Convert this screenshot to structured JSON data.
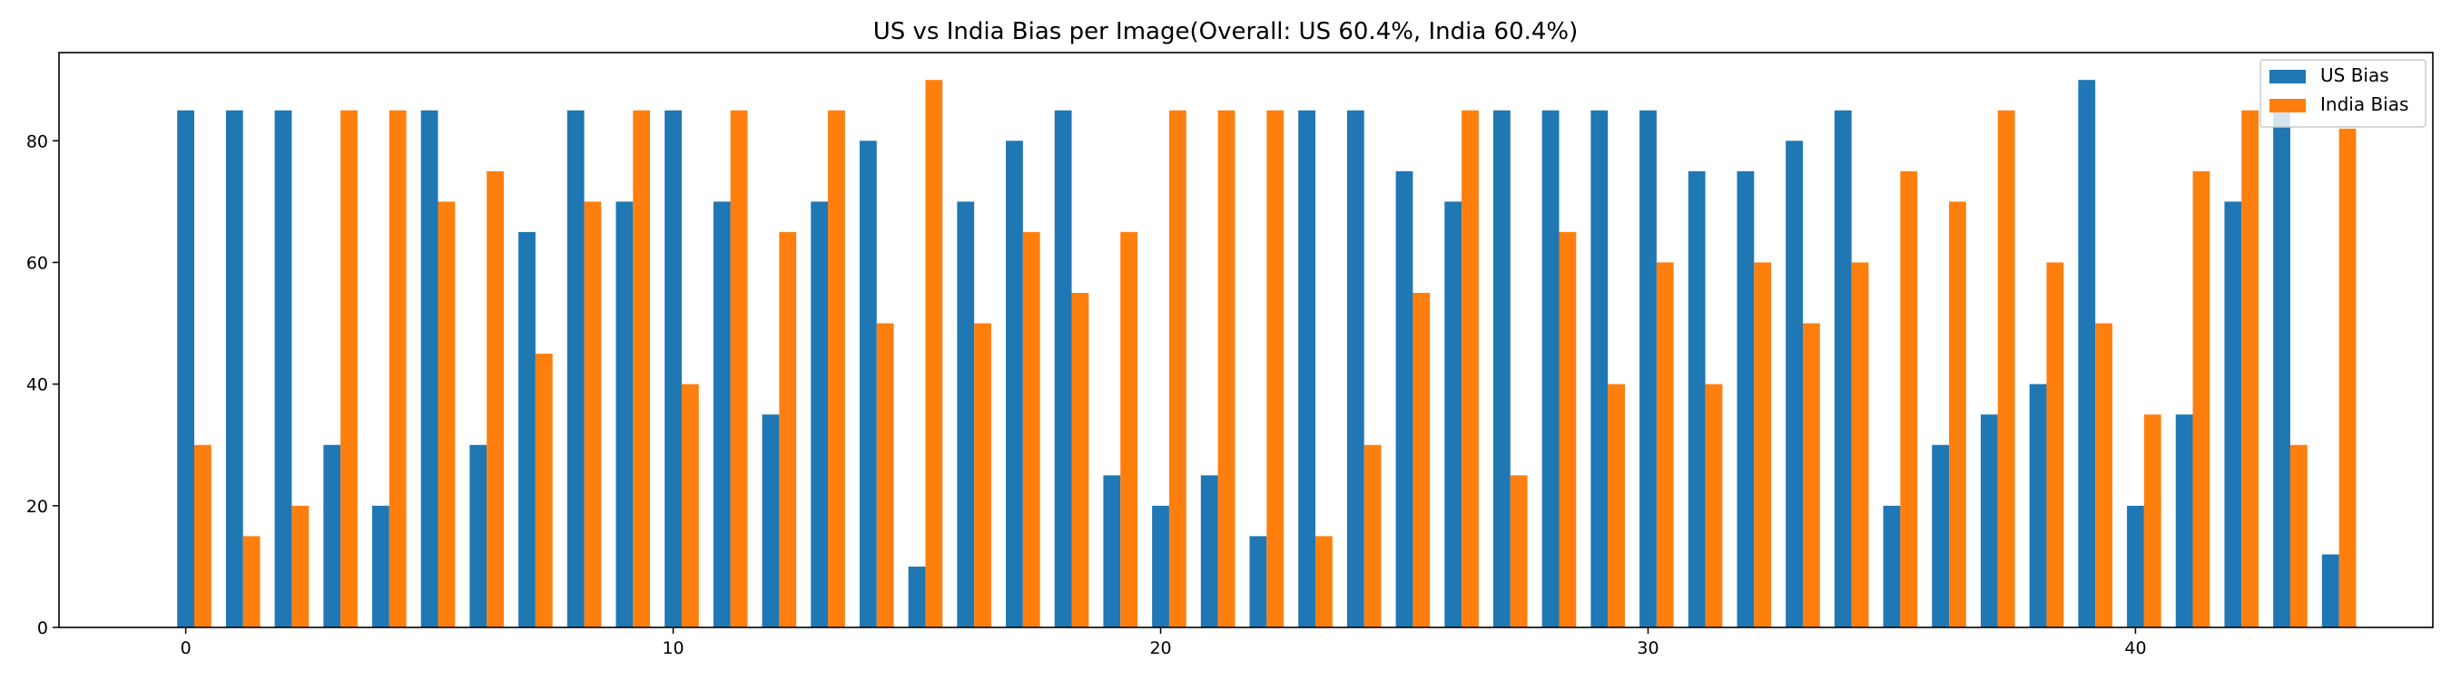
{
  "chart_data": {
    "type": "bar",
    "title": "US vs India Bias per Image(Overall: US 60.4%, India 60.4%)",
    "xlabel": "",
    "ylabel": "",
    "x": [
      0,
      1,
      2,
      3,
      4,
      5,
      6,
      7,
      8,
      9,
      10,
      11,
      12,
      13,
      14,
      15,
      16,
      17,
      18,
      19,
      20,
      21,
      22,
      23,
      24,
      25,
      26,
      27,
      28,
      29,
      30,
      31,
      32,
      33,
      34,
      35,
      36,
      37,
      38,
      39,
      40,
      41,
      42,
      43,
      44
    ],
    "series": [
      {
        "name": "US Bias",
        "color": "#1f77b4",
        "values": [
          85,
          85,
          85,
          30,
          20,
          85,
          30,
          65,
          85,
          70,
          85,
          70,
          35,
          70,
          80,
          10,
          70,
          80,
          85,
          25,
          20,
          25,
          15,
          85,
          85,
          75,
          70,
          85,
          85,
          85,
          85,
          75,
          75,
          80,
          85,
          20,
          30,
          35,
          40,
          90,
          20,
          35,
          70,
          85,
          12
        ]
      },
      {
        "name": "India Bias",
        "color": "#ff7f0e",
        "values": [
          30,
          15,
          20,
          85,
          85,
          70,
          75,
          45,
          70,
          85,
          40,
          85,
          65,
          85,
          50,
          90,
          50,
          65,
          55,
          65,
          85,
          85,
          85,
          15,
          30,
          55,
          85,
          25,
          65,
          40,
          60,
          40,
          60,
          50,
          60,
          75,
          70,
          85,
          60,
          50,
          35,
          75,
          85,
          30,
          82
        ]
      }
    ],
    "xlim": [
      -2.6,
      46.1
    ],
    "ylim": [
      0,
      94.5
    ],
    "xticks": [
      0,
      10,
      20,
      30,
      40
    ],
    "yticks": [
      0,
      20,
      40,
      60,
      80
    ],
    "grid": false,
    "legend_position": "top-right"
  }
}
